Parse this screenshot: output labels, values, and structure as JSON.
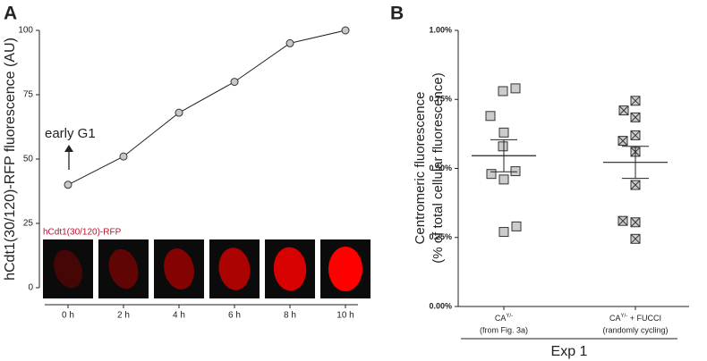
{
  "chart_data": [
    {
      "type": "line",
      "panel": "A",
      "ylabel": "hCdt1(30/120)-RFP fluorescence (AU)",
      "categories": [
        "0 h",
        "2 h",
        "4 h",
        "6 h",
        "8 h",
        "10 h"
      ],
      "series": [
        {
          "values": [
            40,
            51,
            68,
            80,
            95,
            100
          ],
          "color": "#c8c8c8"
        }
      ],
      "ylim": [
        0,
        100
      ],
      "yticks": [
        0,
        25,
        50,
        75,
        100
      ],
      "annotation": "early G1",
      "image_label": "hCdt1(30/120)-RFP"
    },
    {
      "type": "strip",
      "panel": "B",
      "ylabel": [
        "Centromeric fluorescence",
        "(% of total cellular fluorescence)"
      ],
      "categories": [
        {
          "label": "CA",
          "sup": "Y/-",
          "note": "(from Fig. 3a)"
        },
        {
          "label": "CA",
          "sup": "Y/-",
          "suffix": " + FUCCI",
          "note": "(randomly cycling)"
        }
      ],
      "series": [
        {
          "values": [
            0.79,
            0.78,
            0.69,
            0.63,
            0.58,
            0.49,
            0.48,
            0.46,
            0.29,
            0.27
          ],
          "color": "#cccccc",
          "marker": "square"
        },
        {
          "values": [
            0.745,
            0.71,
            0.685,
            0.62,
            0.6,
            0.56,
            0.44,
            0.31,
            0.305,
            0.245
          ],
          "color": "#cccccc",
          "marker": "square-x"
        }
      ],
      "mean": [
        0.546,
        0.522
      ],
      "error": [
        0.058,
        0.058
      ],
      "ylim": [
        0,
        1
      ],
      "yticks": [
        {
          "value": 0,
          "label": "0.00%"
        },
        {
          "value": 0.25,
          "label": "0.25%"
        },
        {
          "value": 0.5,
          "label": "0.50%"
        },
        {
          "value": 0.75,
          "label": "0.75%"
        },
        {
          "value": 1,
          "label": "1.00%"
        }
      ],
      "group_label": "Exp 1"
    }
  ]
}
